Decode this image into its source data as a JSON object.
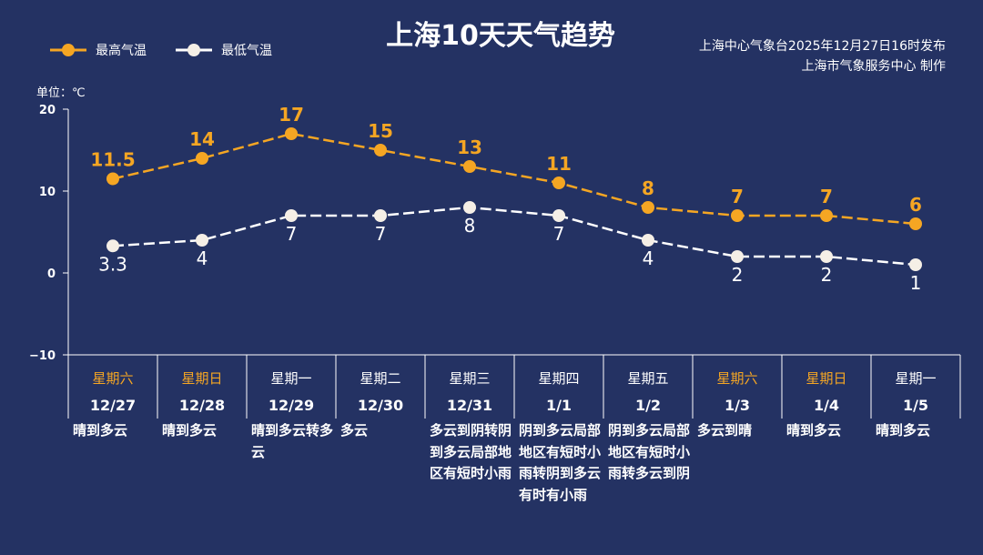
{
  "title": "上海10天天气趋势",
  "issuer": {
    "line1": "上海中心气象台2025年12月27日16时发布",
    "line2": "上海市气象服务中心  制作"
  },
  "colors": {
    "background": "#243263",
    "high": "#f5a623",
    "low": "#ffffff",
    "weekend": "#f5a623"
  },
  "chart_data": {
    "type": "line",
    "title": "上海10天天气趋势",
    "unit_label": "单位：℃",
    "ylim": [
      -10,
      20
    ],
    "yticks": [
      20,
      10,
      0,
      -10
    ],
    "legend_position": "top-left",
    "grid": false,
    "categories": [
      "12/27",
      "12/28",
      "12/29",
      "12/30",
      "12/31",
      "1/1",
      "1/2",
      "1/3",
      "1/4",
      "1/5"
    ],
    "weekdays": [
      "星期六",
      "星期日",
      "星期一",
      "星期二",
      "星期三",
      "星期四",
      "星期五",
      "星期六",
      "星期日",
      "星期一"
    ],
    "weekend": [
      true,
      true,
      false,
      false,
      false,
      false,
      false,
      true,
      true,
      false
    ],
    "weather": [
      "晴到多云",
      "晴到多云",
      "晴到多云转多云",
      "多云",
      "多云到阴转阴到多云局部地区有短时小雨",
      "阴到多云局部地区有短时小雨转阴到多云有时有小雨",
      "阴到多云局部地区有短时小雨转多云到阴",
      "多云到晴",
      "晴到多云",
      "晴到多云"
    ],
    "series": [
      {
        "name": "最高气温",
        "values": [
          11.5,
          14,
          17,
          15,
          13,
          11,
          8,
          7,
          7,
          6
        ]
      },
      {
        "name": "最低气温",
        "values": [
          3.3,
          4,
          7,
          7,
          8,
          7,
          4,
          2,
          2,
          1
        ]
      }
    ]
  }
}
